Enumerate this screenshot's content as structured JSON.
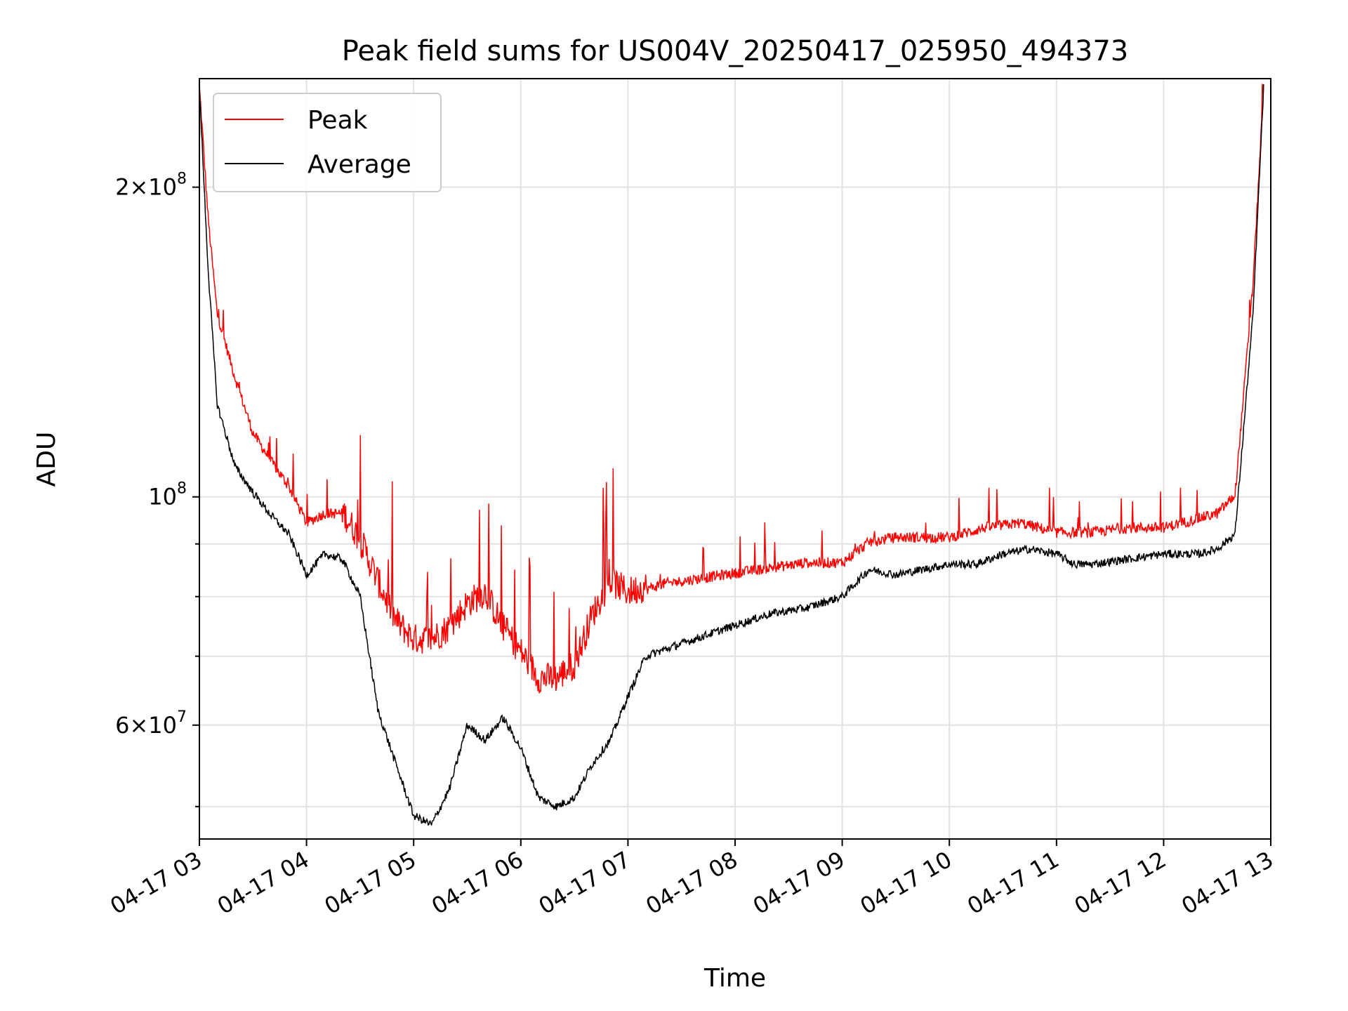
{
  "chart_data": {
    "type": "line",
    "title": "Peak field sums for US004V_20250417_025950_494373",
    "xlabel": "Time",
    "ylabel": "ADU",
    "y_scale": "log",
    "ylim": [
      46500000,
      255000000
    ],
    "xlim": [
      "04-17 03:00",
      "04-17 13:00"
    ],
    "grid": true,
    "legend_position": "top-left",
    "x_ticks": [
      "04-17 03",
      "04-17 04",
      "04-17 05",
      "04-17 06",
      "04-17 07",
      "04-17 08",
      "04-17 09",
      "04-17 10",
      "04-17 11",
      "04-17 12",
      "04-17 13"
    ],
    "y_ticks": [
      {
        "value": 200000000,
        "mantissa": "2",
        "exponent": "8"
      },
      {
        "value": 100000000,
        "mantissa": "",
        "exponent": "8"
      },
      {
        "value": 60000000,
        "mantissa": "6",
        "exponent": "7"
      }
    ],
    "y_minor_ticks": [
      50000000,
      70000000,
      80000000,
      90000000
    ],
    "series": [
      {
        "name": "Peak",
        "color": "#ff0000",
        "x": [
          "04-17 03:00",
          "04-17 03:05",
          "04-17 03:10",
          "04-17 03:20",
          "04-17 03:30",
          "04-17 03:40",
          "04-17 03:50",
          "04-17 04:00",
          "04-17 04:10",
          "04-17 04:20",
          "04-17 04:30",
          "04-17 04:40",
          "04-17 04:50",
          "04-17 05:00",
          "04-17 05:10",
          "04-17 05:20",
          "04-17 05:30",
          "04-17 05:40",
          "04-17 05:50",
          "04-17 06:00",
          "04-17 06:10",
          "04-17 06:20",
          "04-17 06:30",
          "04-17 06:40",
          "04-17 06:50",
          "04-17 07:00",
          "04-17 07:20",
          "04-17 07:40",
          "04-17 08:00",
          "04-17 08:20",
          "04-17 08:40",
          "04-17 09:00",
          "04-17 09:15",
          "04-17 09:30",
          "04-17 10:00",
          "04-17 10:20",
          "04-17 10:40",
          "04-17 11:00",
          "04-17 11:20",
          "04-17 11:40",
          "04-17 12:00",
          "04-17 12:20",
          "04-17 12:30",
          "04-17 12:40",
          "04-17 12:50",
          "04-17 12:56"
        ],
        "y": [
          250000000,
          185000000,
          150000000,
          130000000,
          115000000,
          108000000,
          102000000,
          94000000,
          96000000,
          96000000,
          90000000,
          82000000,
          75000000,
          72000000,
          72000000,
          74000000,
          78000000,
          80000000,
          74000000,
          70000000,
          66000000,
          66000000,
          68000000,
          76000000,
          82000000,
          80000000,
          82000000,
          83000000,
          84000000,
          85000000,
          86000000,
          86000000,
          90000000,
          91000000,
          91000000,
          93000000,
          94000000,
          92000000,
          92000000,
          93000000,
          93000000,
          95000000,
          96000000,
          100000000,
          160000000,
          250000000
        ]
      },
      {
        "name": "Average",
        "color": "#000000",
        "x": [
          "04-17 03:00",
          "04-17 03:05",
          "04-17 03:10",
          "04-17 03:20",
          "04-17 03:30",
          "04-17 03:40",
          "04-17 03:50",
          "04-17 04:00",
          "04-17 04:05",
          "04-17 04:10",
          "04-17 04:20",
          "04-17 04:30",
          "04-17 04:40",
          "04-17 04:50",
          "04-17 05:00",
          "04-17 05:10",
          "04-17 05:20",
          "04-17 05:30",
          "04-17 05:40",
          "04-17 05:50",
          "04-17 06:00",
          "04-17 06:10",
          "04-17 06:20",
          "04-17 06:30",
          "04-17 06:40",
          "04-17 06:50",
          "04-17 07:00",
          "04-17 07:10",
          "04-17 07:20",
          "04-17 07:40",
          "04-17 08:00",
          "04-17 08:20",
          "04-17 08:40",
          "04-17 09:00",
          "04-17 09:15",
          "04-17 09:30",
          "04-17 09:45",
          "04-17 10:00",
          "04-17 10:15",
          "04-17 10:30",
          "04-17 10:45",
          "04-17 11:00",
          "04-17 11:10",
          "04-17 11:20",
          "04-17 11:40",
          "04-17 12:00",
          "04-17 12:20",
          "04-17 12:30",
          "04-17 12:40",
          "04-17 12:50",
          "04-17 12:56"
        ],
        "y": [
          250000000,
          165000000,
          123000000,
          107000000,
          101000000,
          96000000,
          92000000,
          84000000,
          86000000,
          88000000,
          87000000,
          80000000,
          62000000,
          55000000,
          49000000,
          48000000,
          52000000,
          60000000,
          58000000,
          61000000,
          57000000,
          51000000,
          50000000,
          51000000,
          55000000,
          58000000,
          64000000,
          70000000,
          71000000,
          73000000,
          75000000,
          77000000,
          78000000,
          80000000,
          85000000,
          84000000,
          85000000,
          86000000,
          86000000,
          88000000,
          89000000,
          88000000,
          86000000,
          86000000,
          87000000,
          88000000,
          88000000,
          89000000,
          92000000,
          150000000,
          250000000
        ]
      }
    ]
  }
}
